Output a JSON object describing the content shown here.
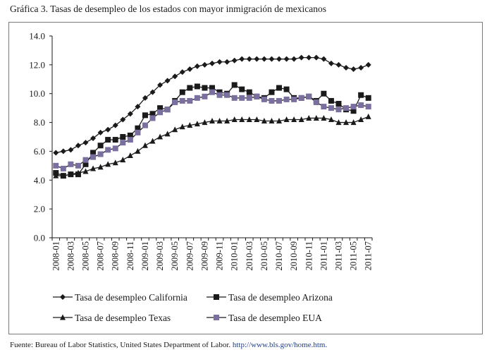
{
  "header": {
    "title": "Gráfica 3. Tasas de desempleo de los estados con mayor inmigración de mexicanos"
  },
  "footer": {
    "source_text": "Fuente: Bureau of Labor Statistics, United States Department of Labor.",
    "source_url": "http://www.bls.gov/home.htm."
  },
  "chart_data": {
    "type": "line",
    "title": "Gráfica 3. Tasas de desempleo de los estados con mayor inmigración de mexicanos",
    "xlabel": "",
    "ylabel": "",
    "ylim": [
      0,
      14
    ],
    "yticks": [
      "0.0",
      "2.0",
      "4.0",
      "6.0",
      "8.0",
      "10.0",
      "12.0",
      "14.0"
    ],
    "grid": false,
    "legend": "bottom",
    "x": [
      "2008-01",
      "2008-02",
      "2008-03",
      "2008-04",
      "2008-05",
      "2008-06",
      "2008-07",
      "2008-08",
      "2008-09",
      "2008-10",
      "2008-11",
      "2008-12",
      "2009-01",
      "2009-02",
      "2009-03",
      "2009-04",
      "2009-05",
      "2009-06",
      "2009-07",
      "2009-08",
      "2009-09",
      "2009-10",
      "2009-11",
      "2009-12",
      "2010-01",
      "2010-02",
      "2010-03",
      "2010-04",
      "2010-05",
      "2010-06",
      "2010-07",
      "2010-08",
      "2010-09",
      "2010-10",
      "2010-11",
      "2010-12",
      "2011-01",
      "2011-02",
      "2011-03",
      "2011-04",
      "2011-05",
      "2011-06",
      "2011-07"
    ],
    "xtick_labels": [
      "2008-01",
      "2008-03",
      "2008-05",
      "2008-07",
      "2008-09",
      "2008-11",
      "2009-01",
      "2009-03",
      "2009-05",
      "2009-07",
      "2009-09",
      "2009-11",
      "2010-01",
      "2010-03",
      "2010-05",
      "2010-07",
      "2010-09",
      "2010-11",
      "2011-01",
      "2011-03",
      "2011-05",
      "2011-07"
    ],
    "series": [
      {
        "name": "Tasa de desempleo California",
        "marker": "diamond",
        "line_color": "#1a1a1a",
        "marker_color": "#1a1a1a",
        "values": [
          5.9,
          6.0,
          6.1,
          6.4,
          6.6,
          6.9,
          7.3,
          7.5,
          7.8,
          8.2,
          8.6,
          9.1,
          9.7,
          10.1,
          10.6,
          10.9,
          11.2,
          11.5,
          11.7,
          11.9,
          12.0,
          12.1,
          12.2,
          12.2,
          12.3,
          12.4,
          12.4,
          12.4,
          12.4,
          12.4,
          12.4,
          12.4,
          12.4,
          12.5,
          12.5,
          12.5,
          12.4,
          12.1,
          12.0,
          11.8,
          11.7,
          11.8,
          12.0
        ]
      },
      {
        "name": "Tasa de desempleo Arizona",
        "marker": "square",
        "line_color": "#1a1a1a",
        "marker_color": "#1a1a1a",
        "values": [
          4.5,
          4.3,
          4.4,
          4.4,
          5.1,
          5.9,
          6.4,
          6.8,
          6.8,
          7.0,
          7.1,
          7.6,
          8.5,
          8.6,
          9.0,
          8.9,
          9.5,
          10.1,
          10.4,
          10.5,
          10.4,
          10.4,
          10.1,
          10.0,
          10.6,
          10.3,
          10.1,
          9.8,
          9.7,
          10.1,
          10.4,
          10.3,
          9.7,
          9.7,
          9.8,
          9.5,
          10.0,
          9.5,
          9.3,
          8.9,
          8.8,
          9.9,
          9.7
        ]
      },
      {
        "name": "Tasa de desempleo Texas",
        "marker": "triangle",
        "line_color": "#1a1a1a",
        "marker_color": "#1a1a1a",
        "values": [
          4.3,
          4.3,
          4.4,
          4.5,
          4.6,
          4.8,
          4.9,
          5.1,
          5.2,
          5.4,
          5.7,
          6.0,
          6.4,
          6.7,
          7.0,
          7.2,
          7.5,
          7.7,
          7.8,
          7.9,
          8.0,
          8.1,
          8.1,
          8.1,
          8.2,
          8.2,
          8.2,
          8.2,
          8.1,
          8.1,
          8.1,
          8.2,
          8.2,
          8.2,
          8.3,
          8.3,
          8.3,
          8.2,
          8.0,
          8.0,
          8.0,
          8.2,
          8.4
        ]
      },
      {
        "name": "Tasa de desempleo EUA",
        "marker": "square",
        "line_color": "#1a1a1a",
        "marker_color": "#7b6fa0",
        "values": [
          5.0,
          4.8,
          5.1,
          5.0,
          5.4,
          5.6,
          5.8,
          6.1,
          6.2,
          6.6,
          6.8,
          7.3,
          7.8,
          8.3,
          8.7,
          8.9,
          9.4,
          9.5,
          9.5,
          9.7,
          9.8,
          10.1,
          9.9,
          9.9,
          9.7,
          9.7,
          9.7,
          9.8,
          9.6,
          9.5,
          9.5,
          9.6,
          9.6,
          9.7,
          9.8,
          9.4,
          9.1,
          9.0,
          8.9,
          9.0,
          9.1,
          9.2,
          9.1
        ]
      }
    ]
  }
}
